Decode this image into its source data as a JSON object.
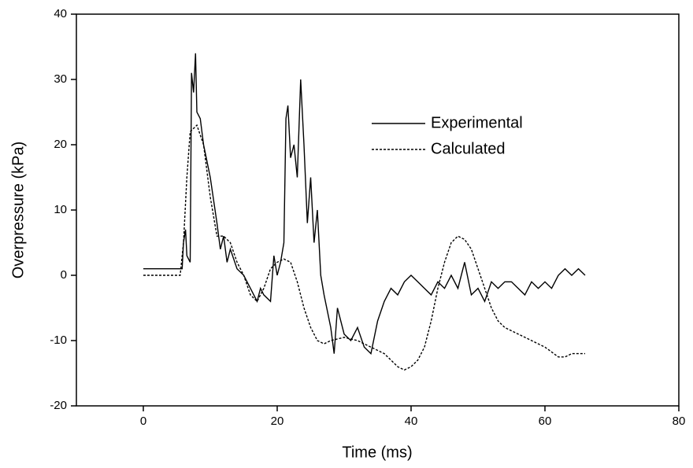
{
  "chart_data": {
    "type": "line",
    "xlabel": "Time (ms)",
    "ylabel": "Overpressure (kPa)",
    "xlim": [
      -10,
      80
    ],
    "ylim": [
      -20,
      40
    ],
    "xticks": [
      0,
      20,
      40,
      60,
      80
    ],
    "yticks": [
      -20,
      -10,
      0,
      10,
      20,
      30,
      40
    ],
    "series": [
      {
        "name": "Experimental",
        "color": "#000000",
        "style": "solid",
        "x": [
          0,
          5.8,
          6,
          6.3,
          6.5,
          7,
          7.2,
          7.5,
          7.8,
          8,
          8.5,
          9,
          10,
          11,
          11.5,
          12,
          12.5,
          13,
          14,
          15,
          16,
          17,
          17.5,
          18,
          19,
          19.5,
          20,
          20.5,
          21,
          21.3,
          21.6,
          22,
          22.5,
          23,
          23.5,
          24,
          24.5,
          25,
          25.5,
          26,
          26.5,
          27,
          28,
          28.5,
          29,
          30,
          31,
          32,
          33,
          34,
          35,
          36,
          37,
          38,
          39,
          40,
          41,
          42,
          43,
          44,
          45,
          46,
          47,
          48,
          49,
          50,
          51,
          52,
          53,
          54,
          55,
          56,
          57,
          58,
          59,
          60,
          61,
          62,
          63,
          64,
          65,
          66
        ],
        "values": [
          1,
          1,
          5,
          7,
          3,
          2,
          31,
          28,
          34,
          25,
          24,
          20,
          15,
          8,
          4,
          6,
          2,
          4,
          1,
          0,
          -2,
          -4,
          -2,
          -3,
          -4,
          3,
          0,
          2,
          5,
          24,
          26,
          18,
          20,
          15,
          30,
          20,
          8,
          15,
          5,
          10,
          0,
          -3,
          -8,
          -12,
          -5,
          -9,
          -10,
          -8,
          -11,
          -12,
          -7,
          -4,
          -2,
          -3,
          -1,
          0,
          -1,
          -2,
          -3,
          -1,
          -2,
          0,
          -2,
          2,
          -3,
          -2,
          -4,
          -1,
          -2,
          -1,
          -1,
          -2,
          -3,
          -1,
          -2,
          -1,
          -2,
          0,
          1,
          0,
          1,
          0
        ]
      },
      {
        "name": "Calculated",
        "color": "#000000",
        "style": "dashed",
        "x": [
          0,
          5.5,
          6,
          6.5,
          7,
          8,
          9,
          10,
          11,
          12,
          13,
          14,
          15,
          16,
          17,
          18,
          19,
          20,
          21,
          22,
          23,
          24,
          25,
          26,
          27,
          28,
          30,
          32,
          34,
          36,
          38,
          39,
          40,
          41,
          42,
          43,
          44,
          45,
          46,
          47,
          48,
          49,
          50,
          51,
          52,
          53,
          54,
          56,
          58,
          60,
          62,
          63,
          64,
          66
        ],
        "values": [
          0,
          0,
          5,
          15,
          22,
          23,
          20,
          12,
          6,
          6,
          5,
          2,
          0,
          -3,
          -4,
          -2,
          1,
          2,
          2.5,
          2,
          -1,
          -5,
          -8,
          -10,
          -10.5,
          -10,
          -9.5,
          -10,
          -11,
          -12,
          -14,
          -14.5,
          -14,
          -13,
          -11,
          -7,
          -2,
          2,
          5,
          6,
          5.5,
          4,
          1,
          -2,
          -5,
          -7,
          -8,
          -9,
          -10,
          -11,
          -12.5,
          -12.5,
          -12,
          -12
        ]
      }
    ]
  }
}
